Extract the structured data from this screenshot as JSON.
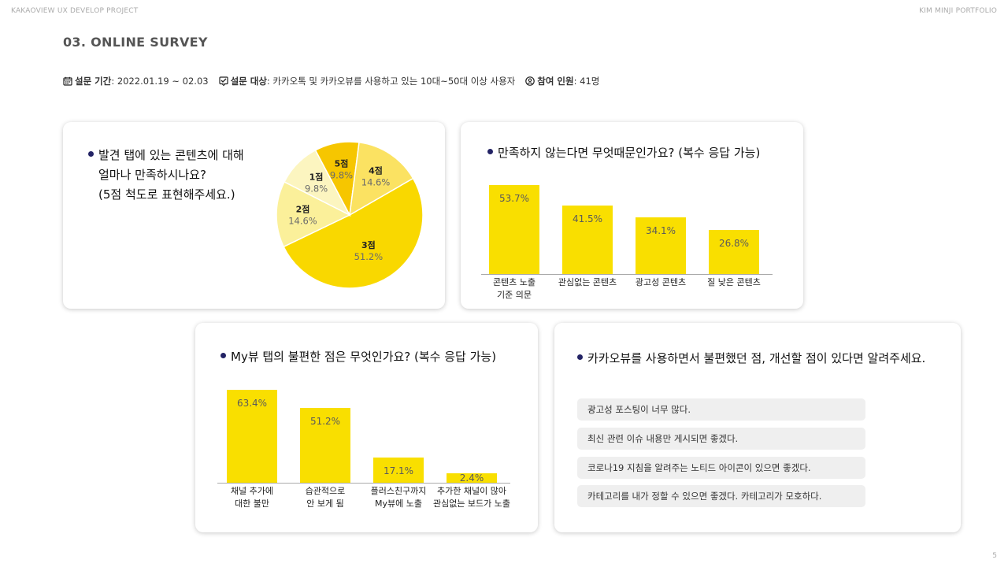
{
  "header": {
    "left": "KAKAOVIEW UX DEVELOP PROJECT",
    "right": "KIM MINJI PORTFOLIO",
    "page_number": "5"
  },
  "title": "03. ONLINE SURVEY",
  "meta": {
    "period_label": "설문 기간",
    "period_value": " : 2022.01.19 ~ 02.03",
    "target_label": "설문 대상",
    "target_value": " : 카카오톡 및 카카오뷰를 사용하고 있는 10대~50대 이상 사용자",
    "participants_label": "참여 인원",
    "participants_value": " : 41명",
    "icons": [
      "calendar-icon",
      "checklist-icon",
      "person-icon"
    ]
  },
  "q1": {
    "lines": [
      "발견 탭에 있는 콘텐츠에 대해",
      "얼마나 만족하시나요?",
      "(5점 척도로 표현해주세요.)"
    ]
  },
  "q2": {
    "question": "만족하지 않는다면 무엇때문인가요? (복수 응답 가능)"
  },
  "q3": {
    "question": "My뷰 탭의 불편한 점은 무엇인가요? (복수 응답 가능)"
  },
  "q4": {
    "question": "카카오뷰를 사용하면서 불편했던 점, 개선할 점이 있다면 알려주세요.",
    "responses": [
      "광고성 포스팅이 너무 많다.",
      "최신 관련 이슈 내용만 게시되면 좋겠다.",
      "코로나19 지침을 알려주는 노티드 아이콘이 있으면 좋겠다.",
      "카테고리를 내가 정할 수 있으면 좋겠다. 카테고리가 모호하다."
    ]
  },
  "chart_data": [
    {
      "type": "pie",
      "categories": [
        "3점",
        "2점",
        "1점",
        "5점",
        "4점"
      ],
      "values": [
        51.2,
        14.6,
        9.8,
        9.8,
        14.6
      ],
      "labels": [
        "51.2%",
        "14.6%",
        "9.8%",
        "9.8%",
        "14.6%"
      ],
      "colors": [
        "#f9d800",
        "#fbf09a",
        "#fcf5c0",
        "#f6c600",
        "#fbe262"
      ]
    },
    {
      "type": "bar",
      "categories": [
        [
          "콘텐츠 노출",
          "기준 의문"
        ],
        [
          "관심없는 콘텐츠"
        ],
        [
          "광고성 콘텐츠"
        ],
        [
          "질 낮은 콘텐츠"
        ]
      ],
      "values": [
        53.7,
        41.5,
        34.1,
        26.8
      ],
      "labels": [
        "53.7%",
        "41.5%",
        "34.1%",
        "26.8%"
      ],
      "ylim": [
        0,
        60
      ],
      "color": "#f9df00"
    },
    {
      "type": "bar",
      "categories": [
        [
          "채널 추가에",
          "대한 불만"
        ],
        [
          "습관적으로",
          "안 보게 됨"
        ],
        [
          "플러스친구까지",
          "My뷰에 노출"
        ],
        [
          "추가한 채널이 많아",
          "관심없는 보드가 노출"
        ]
      ],
      "values": [
        63.4,
        51.2,
        17.1,
        2.4
      ],
      "labels": [
        "63.4%",
        "51.2%",
        "17.1%",
        "2.4%"
      ],
      "ylim": [
        0,
        65
      ],
      "color": "#f9df00"
    }
  ]
}
